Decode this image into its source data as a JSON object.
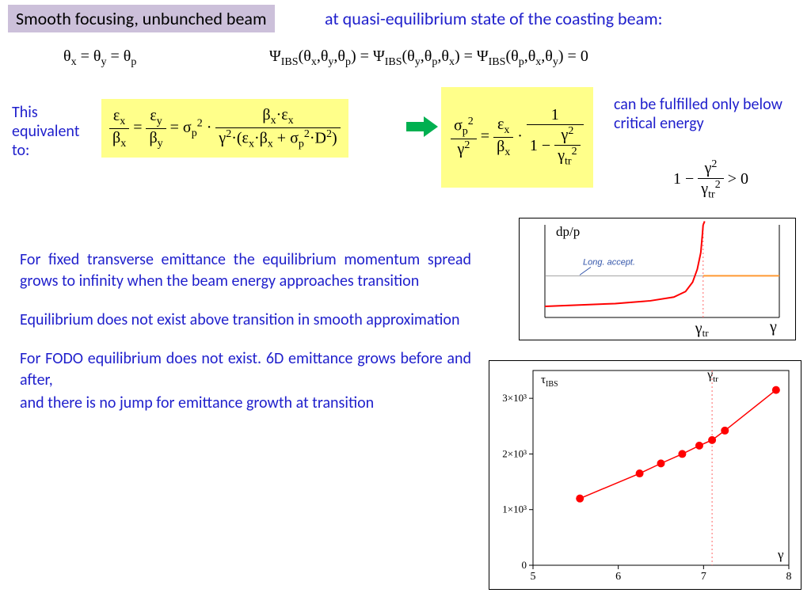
{
  "title": "Smooth focusing, unbunched beam",
  "subtitle": "at quasi-equilibrium state of the coasting beam:",
  "eq_theta": "θₓ = θᵧ = θₚ",
  "eq_psi": "Ψ_IBS(θₓ,θᵧ,θₚ) = Ψ_IBS(θᵧ,θₚ,θₓ) = Ψ_IBS(θₚ,θₓ,θᵧ) = 0",
  "lbl_equiv": "This equivalent to:",
  "lbl_critical": "can be fulfilled only below critical energy",
  "para1": "For fixed transverse emittance the equilibrium momentum spread grows to infinity when the beam energy approaches transition",
  "para2": "Equilibrium does not exist above transition in smooth approximation",
  "para3": "For FODO equilibrium does not exist. 6D  emittance grows before and after,",
  "para4": "and there is no jump for emittance growth at transition",
  "colors": {
    "title_bg": "#ccc0da",
    "highlight_bg": "#ffff8a",
    "body_text": "#1f1fcc",
    "arrow": "#00b050",
    "curve_red": "#ff0000",
    "long_accept": "#ff9933",
    "annot_blue": "#3355aa"
  },
  "chart1": {
    "ylabel": "dp/p",
    "xlabel": "γ",
    "annot": "Long. accept.",
    "gamma_tr_label": "γ_tr",
    "long_accept_y": 0.55,
    "curve": [
      {
        "x": 0.0,
        "y": 0.88
      },
      {
        "x": 0.3,
        "y": 0.85
      },
      {
        "x": 0.45,
        "y": 0.82
      },
      {
        "x": 0.55,
        "y": 0.78
      },
      {
        "x": 0.6,
        "y": 0.72
      },
      {
        "x": 0.63,
        "y": 0.62
      },
      {
        "x": 0.65,
        "y": 0.48
      },
      {
        "x": 0.665,
        "y": 0.3
      },
      {
        "x": 0.672,
        "y": 0.1
      },
      {
        "x": 0.675,
        "y": 0.0
      }
    ],
    "gamma_tr_x": 0.675
  },
  "chart2": {
    "ylabel": "τ_IBS",
    "xlabel": "γ",
    "xlim": [
      5,
      8
    ],
    "xticks": [
      5,
      6,
      7,
      8
    ],
    "ylim": [
      0,
      3500
    ],
    "yticks": [
      {
        "v": 0,
        "l": "0"
      },
      {
        "v": 1000,
        "l": "1×10³"
      },
      {
        "v": 2000,
        "l": "2×10³"
      },
      {
        "v": 3000,
        "l": "3×10³"
      }
    ],
    "gamma_tr_x": 7.1,
    "gamma_tr_label": "γ_tr",
    "points": [
      {
        "x": 5.55,
        "y": 1200
      },
      {
        "x": 6.25,
        "y": 1650
      },
      {
        "x": 6.5,
        "y": 1830
      },
      {
        "x": 6.75,
        "y": 2000
      },
      {
        "x": 6.95,
        "y": 2150
      },
      {
        "x": 7.1,
        "y": 2250
      },
      {
        "x": 7.25,
        "y": 2420
      },
      {
        "x": 7.85,
        "y": 3150
      }
    ],
    "line_color": "#ff0000",
    "marker_size": 5
  }
}
